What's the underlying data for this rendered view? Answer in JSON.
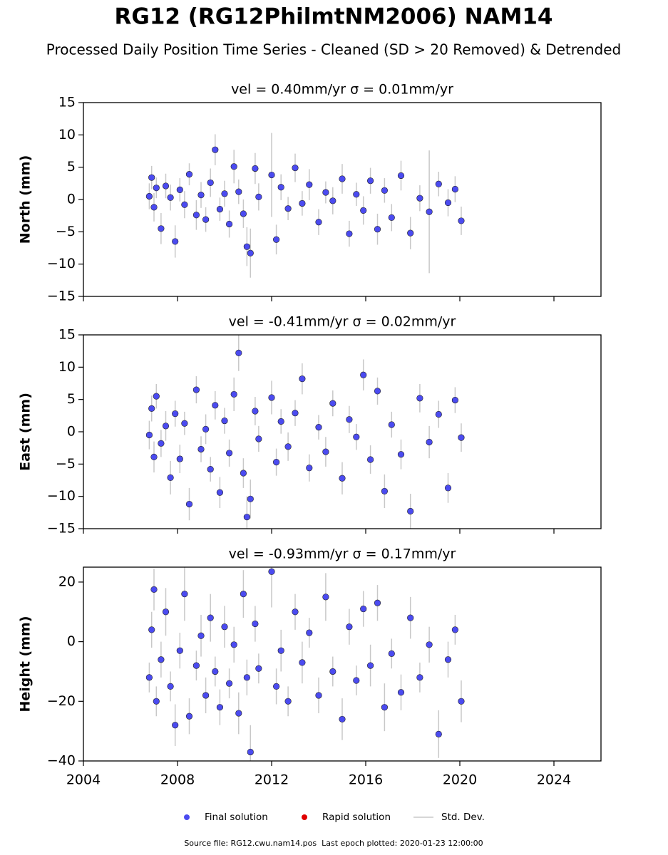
{
  "title": "RG12 (RG12PhilmtNM2006) NAM14",
  "subtitle": "Processed Daily Position Time Series - Cleaned (SD > 20 Removed) & Detrended",
  "legend": [
    {
      "name": "Final solution",
      "color": "#4b4bf0",
      "marker": "circle"
    },
    {
      "name": "Rapid solution",
      "color": "#e00000",
      "marker": "circle"
    },
    {
      "name": "Std. Dev.",
      "color": "#c8c8c8",
      "marker": "line"
    }
  ],
  "source": "Source file: RG12.cwu.nam14.pos  Last epoch plotted: 2020-01-23 12:00:00",
  "chart_data": [
    {
      "type": "scatter",
      "title": "vel = 0.40mm/yr   σ = 0.01mm/yr",
      "ylabel": "North (mm)",
      "color": "#4b4bf0",
      "error_color": "#c8c8c8",
      "show_xticklabels": false,
      "xlim": [
        2004,
        2026
      ],
      "xticks": [
        2004,
        2008,
        2012,
        2016,
        2020,
        2024
      ],
      "ylim": [
        -15,
        15
      ],
      "yticks": [
        {
          "value": -15,
          "label": "−15"
        },
        {
          "value": -10,
          "label": "−10"
        },
        {
          "value": -5,
          "label": "−5"
        },
        0,
        5,
        10,
        15
      ],
      "x": [
        2006.8,
        2006.9,
        2007.0,
        2007.1,
        2007.3,
        2007.5,
        2007.7,
        2007.9,
        2008.1,
        2008.3,
        2008.5,
        2008.8,
        2009.0,
        2009.2,
        2009.4,
        2009.6,
        2009.8,
        2010.0,
        2010.2,
        2010.4,
        2010.6,
        2010.8,
        2010.95,
        2011.1,
        2011.3,
        2011.45,
        2012.0,
        2012.2,
        2012.4,
        2012.7,
        2013.0,
        2013.3,
        2013.6,
        2014.0,
        2014.3,
        2014.6,
        2015.0,
        2015.3,
        2015.6,
        2015.9,
        2016.2,
        2016.5,
        2016.8,
        2017.1,
        2017.5,
        2017.9,
        2018.3,
        2018.7,
        2019.1,
        2019.5,
        2019.8,
        2020.06
      ],
      "values": [
        0.5,
        3.4,
        -1.2,
        1.8,
        -4.5,
        2.1,
        0.3,
        -6.5,
        1.5,
        -0.8,
        3.9,
        -2.4,
        0.7,
        -3.1,
        2.6,
        7.7,
        -1.5,
        0.9,
        -3.8,
        5.1,
        1.2,
        -2.2,
        -7.3,
        -8.3,
        4.8,
        0.4,
        3.8,
        -6.2,
        1.9,
        -1.4,
        4.9,
        -0.6,
        2.3,
        -3.5,
        1.1,
        -0.2,
        3.2,
        -5.3,
        0.8,
        -1.7,
        2.9,
        -4.6,
        1.4,
        -2.8,
        3.7,
        -5.2,
        0.2,
        -1.9,
        2.4,
        -0.5,
        1.6,
        -3.3
      ],
      "errors": [
        2,
        1.8,
        2.2,
        1.6,
        2.4,
        1.9,
        2,
        2.5,
        1.8,
        2.1,
        1.7,
        2.3,
        2,
        1.9,
        2.2,
        2.4,
        1.8,
        2,
        2.1,
        2.6,
        1.9,
        2.2,
        3,
        3.8,
        2.4,
        2.1,
        6.5,
        2.3,
        2,
        1.8,
        2.2,
        1.9,
        2.4,
        2,
        1.7,
        2.1,
        2.3,
        2,
        1.8,
        2.2,
        2,
        2.4,
        1.9,
        2.1,
        2.3,
        2.5,
        2,
        9.5,
        1.9,
        2.1,
        2,
        2.2
      ]
    },
    {
      "type": "scatter",
      "title": "vel = -0.41mm/yr   σ = 0.02mm/yr",
      "ylabel": "East (mm)",
      "color": "#4b4bf0",
      "error_color": "#c8c8c8",
      "show_xticklabels": false,
      "xlim": [
        2004,
        2026
      ],
      "xticks": [
        2004,
        2008,
        2012,
        2016,
        2020,
        2024
      ],
      "ylim": [
        -15,
        15
      ],
      "yticks": [
        {
          "value": -15,
          "label": "−15"
        },
        {
          "value": -10,
          "label": "−10"
        },
        {
          "value": -5,
          "label": "−5"
        },
        0,
        5,
        10,
        15
      ],
      "x": [
        2006.8,
        2006.9,
        2007.0,
        2007.1,
        2007.3,
        2007.5,
        2007.7,
        2007.9,
        2008.1,
        2008.3,
        2008.5,
        2008.8,
        2009.0,
        2009.2,
        2009.4,
        2009.6,
        2009.8,
        2010.0,
        2010.2,
        2010.4,
        2010.6,
        2010.8,
        2010.95,
        2011.1,
        2011.3,
        2011.45,
        2012.0,
        2012.2,
        2012.4,
        2012.7,
        2013.0,
        2013.3,
        2013.6,
        2014.0,
        2014.3,
        2014.6,
        2015.0,
        2015.3,
        2015.6,
        2015.9,
        2016.2,
        2016.5,
        2016.8,
        2017.1,
        2017.5,
        2017.9,
        2018.3,
        2018.7,
        2019.1,
        2019.5,
        2019.8,
        2020.06
      ],
      "values": [
        -0.5,
        3.6,
        -3.9,
        5.5,
        -1.8,
        0.9,
        -7.1,
        2.8,
        -4.2,
        1.3,
        -11.2,
        6.5,
        -2.7,
        0.4,
        -5.8,
        4.1,
        -9.4,
        1.7,
        -3.3,
        5.8,
        12.2,
        -6.4,
        -13.2,
        -10.4,
        3.2,
        -1.1,
        5.3,
        -4.7,
        1.6,
        -2.3,
        2.9,
        8.2,
        -5.6,
        0.7,
        -3.1,
        4.4,
        -7.2,
        1.9,
        -0.8,
        8.8,
        -4.3,
        6.3,
        -9.2,
        1.1,
        -3.5,
        -12.3,
        5.2,
        -1.6,
        2.7,
        -8.7,
        4.9,
        -0.9
      ],
      "errors": [
        2.2,
        2,
        2.4,
        1.9,
        2.1,
        2.3,
        2.6,
        2,
        2.2,
        1.8,
        2.5,
        2.1,
        2,
        2.3,
        1.9,
        2.2,
        2.4,
        2,
        2.1,
        2.6,
        2.8,
        2.3,
        3.2,
        3,
        2.2,
        2,
        2.6,
        2.1,
        1.9,
        2.2,
        2,
        2.4,
        2.1,
        1.9,
        2.3,
        2,
        2.5,
        2.1,
        2,
        2.4,
        2.2,
        2.1,
        2.6,
        2,
        2.3,
        2.7,
        2.2,
        2.5,
        2.1,
        2.3,
        2,
        2.2
      ]
    },
    {
      "type": "scatter",
      "title": "vel = -0.93mm/yr   σ = 0.17mm/yr",
      "ylabel": "Height (mm)",
      "color": "#4b4bf0",
      "error_color": "#c8c8c8",
      "show_xticklabels": true,
      "xlim": [
        2004,
        2026
      ],
      "xticks": [
        2004,
        2008,
        2012,
        2016,
        2020,
        2024
      ],
      "ylim": [
        -40,
        25
      ],
      "yticks": [
        {
          "value": -40,
          "label": "−40"
        },
        {
          "value": -20,
          "label": "−20"
        },
        0,
        20
      ],
      "x": [
        2006.8,
        2006.9,
        2007.0,
        2007.1,
        2007.3,
        2007.5,
        2007.7,
        2007.9,
        2008.1,
        2008.3,
        2008.5,
        2008.8,
        2009.0,
        2009.2,
        2009.4,
        2009.6,
        2009.8,
        2010.0,
        2010.2,
        2010.4,
        2010.6,
        2010.8,
        2010.95,
        2011.1,
        2011.3,
        2011.45,
        2012.0,
        2012.2,
        2012.4,
        2012.7,
        2013.0,
        2013.3,
        2013.6,
        2014.0,
        2014.3,
        2014.6,
        2015.0,
        2015.3,
        2015.6,
        2015.9,
        2016.2,
        2016.5,
        2016.8,
        2017.1,
        2017.5,
        2017.9,
        2018.3,
        2018.7,
        2019.1,
        2019.5,
        2019.8,
        2020.06
      ],
      "values": [
        -12,
        4,
        17.5,
        -20,
        -6,
        10,
        -15,
        -28,
        -3,
        16,
        -25,
        -8,
        2,
        -18,
        8,
        -10,
        -22,
        5,
        -14,
        -1,
        -24,
        16,
        -12,
        -37,
        6,
        -9,
        23.5,
        -15,
        -3,
        -20,
        10,
        -7,
        3,
        -18,
        15,
        -10,
        -26,
        5,
        -13,
        11,
        -8,
        13,
        -22,
        -4,
        -17,
        8,
        -12,
        -1,
        -31,
        -6,
        4,
        -20
      ],
      "errors": [
        5,
        6,
        7,
        5,
        6,
        8,
        5,
        7,
        6,
        9,
        6,
        5,
        7,
        6,
        8,
        5,
        6,
        7,
        5,
        6,
        7,
        8,
        6,
        9,
        6,
        5,
        12,
        6,
        7,
        5,
        6,
        7,
        5,
        6,
        8,
        5,
        7,
        6,
        5,
        6,
        7,
        6,
        8,
        5,
        6,
        7,
        5,
        6,
        8,
        6,
        5,
        7
      ]
    }
  ]
}
